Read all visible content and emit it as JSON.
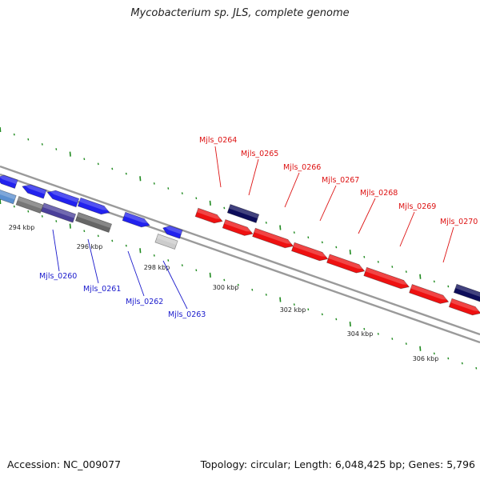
{
  "title": "Mycobacterium sp. JLS, complete genome",
  "footer": {
    "accession": "Accession: NC_009077",
    "summary": "Topology: circular; Length: 6,048,425 bp; Genes: 5,796"
  },
  "colors": {
    "forward_strand": "#2222ee",
    "reverse_strand": "#ee1111",
    "highlight_blue": "#0d0d5a",
    "grey_gene": "#666666",
    "light_grey_gene": "#cccccc",
    "tick_green": "#1f8a1f",
    "backbone": "#9a9a9a",
    "blue_label": "#1a1acc",
    "red_label": "#dd1111"
  },
  "scale_labels": [
    "294 kbp",
    "296 kbp",
    "298 kbp",
    "300 kbp",
    "302 kbp",
    "304 kbp",
    "306 kbp"
  ],
  "gene_labels_blue": [
    "Mjls_0260",
    "Mjls_0261",
    "Mjls_0262",
    "Mjls_0263"
  ],
  "gene_labels_red": [
    "Mjls_0264",
    "Mjls_0265",
    "Mjls_0266",
    "Mjls_0267",
    "Mjls_0268",
    "Mjls_0269",
    "Mjls_0270"
  ]
}
